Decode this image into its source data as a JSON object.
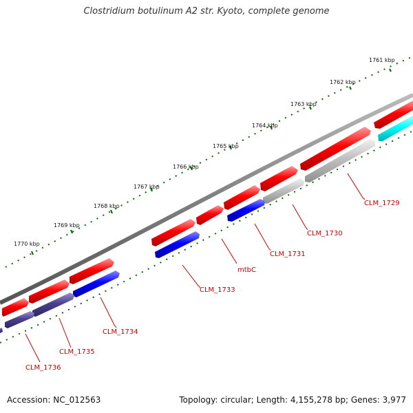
{
  "title": "Clostridium botulinum A2 str. Kyoto, complete genome",
  "accession": "Accession: NC_012563",
  "topology": "Topology: circular; Length: 4,155,278 bp; Genes: 3,977",
  "colors": {
    "backbone": "#808080",
    "forward_gene": "#ff0000",
    "reverse_gene": "#0000ff",
    "reverse_gene_dark": "#4b4090",
    "reverse_gene_grey": "#c0c0c0",
    "reverse_gene_cyan": "#00ffff",
    "scale_dots": "#006600",
    "label": "#cc0000"
  },
  "scale": {
    "unit": "kbp",
    "ticks": [
      "1761 kbp",
      "1762 kbp",
      "1763 kbp",
      "1764 kbp",
      "1765 kbp",
      "1766 kbp",
      "1767 kbp",
      "1768 kbp",
      "1769 kbp",
      "1770 kbp"
    ]
  },
  "genes": {
    "forward": [
      {
        "id": "f1",
        "color": "red"
      },
      {
        "id": "f2",
        "color": "red"
      },
      {
        "id": "f3",
        "color": "red"
      },
      {
        "id": "f4",
        "color": "red"
      },
      {
        "id": "f5",
        "color": "red"
      },
      {
        "id": "f6",
        "color": "red"
      },
      {
        "id": "f7",
        "color": "red"
      },
      {
        "id": "f8",
        "color": "red"
      },
      {
        "id": "f9",
        "color": "red"
      }
    ],
    "reverse": [
      {
        "label": "CLM_1736",
        "color": "dark"
      },
      {
        "label": "CLM_1735",
        "color": "dark"
      },
      {
        "label": "CLM_1734",
        "color": "blue"
      },
      {
        "label": "CLM_1733",
        "color": "blue"
      },
      {
        "label": "CLM_1731",
        "color": "blue"
      },
      {
        "label": "CLM_1730",
        "color": "grey"
      },
      {
        "label": "CLM_1729",
        "color": "grey"
      },
      {
        "label": "",
        "color": "cyan"
      }
    ],
    "extra_labels": [
      "mtbC"
    ]
  }
}
